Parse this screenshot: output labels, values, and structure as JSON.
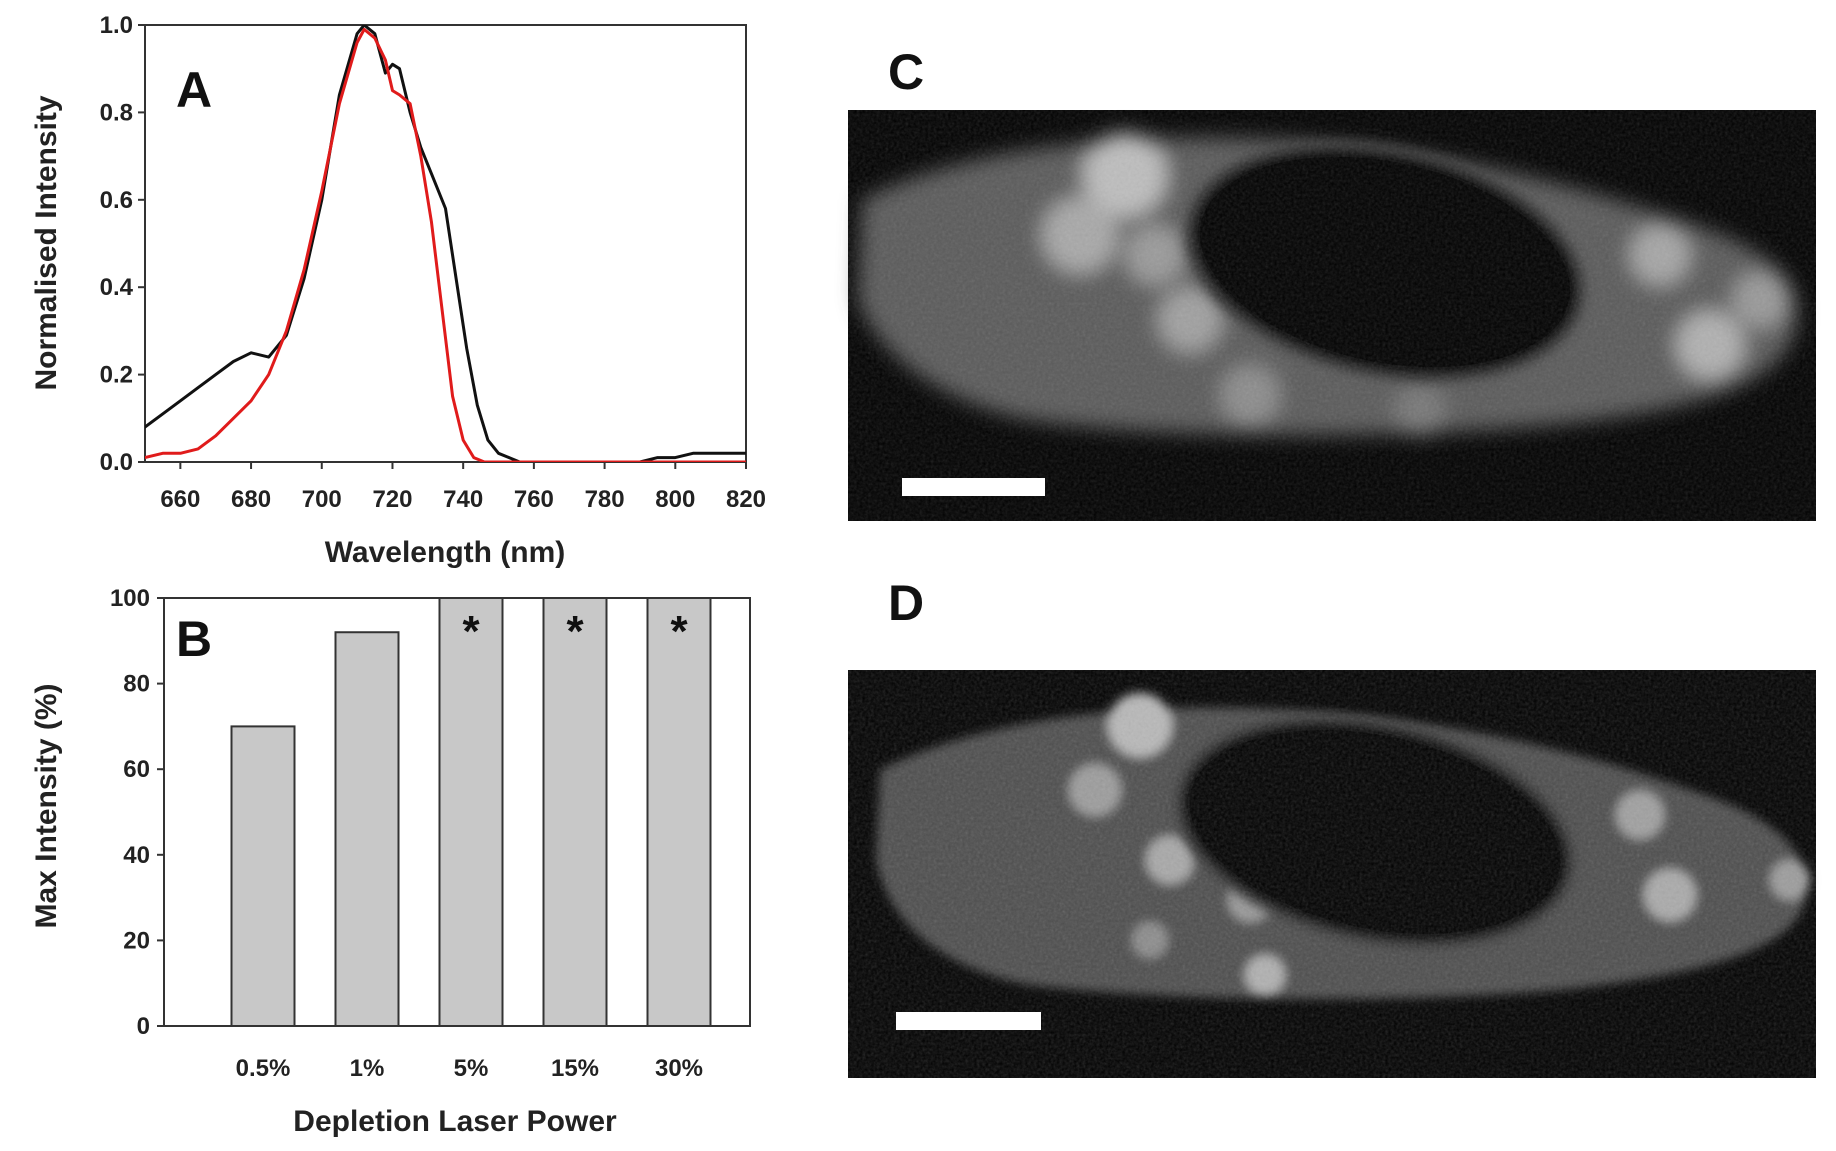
{
  "chart_data": [
    {
      "panel": "A",
      "type": "line",
      "xlabel": "Wavelength (nm)",
      "ylabel": "Normalised Intensity",
      "xlim": [
        650,
        820
      ],
      "ylim": [
        0.0,
        1.0
      ],
      "xticks": [
        "660",
        "680",
        "700",
        "720",
        "740",
        "760",
        "780",
        "800",
        "820"
      ],
      "yticks": [
        "0.0",
        "0.2",
        "0.4",
        "0.6",
        "0.8",
        "1.0"
      ],
      "grid": false,
      "series": [
        {
          "color": "#111111",
          "x": [
            650,
            655,
            660,
            665,
            670,
            675,
            680,
            685,
            690,
            695,
            700,
            705,
            710,
            712,
            715,
            718,
            720,
            722,
            725,
            728,
            731,
            735,
            738,
            741,
            744,
            747,
            750,
            753,
            756,
            760,
            770,
            780,
            790,
            795,
            800,
            805,
            810,
            815,
            820
          ],
          "y": [
            0.08,
            0.11,
            0.14,
            0.17,
            0.2,
            0.23,
            0.25,
            0.24,
            0.29,
            0.42,
            0.6,
            0.84,
            0.98,
            1.0,
            0.98,
            0.89,
            0.91,
            0.9,
            0.8,
            0.72,
            0.66,
            0.58,
            0.42,
            0.26,
            0.13,
            0.05,
            0.02,
            0.01,
            0.0,
            0.0,
            0.0,
            0.0,
            0.0,
            0.01,
            0.01,
            0.02,
            0.02,
            0.02,
            0.02
          ]
        },
        {
          "color": "#e01b1b",
          "x": [
            650,
            655,
            660,
            665,
            670,
            675,
            680,
            685,
            690,
            695,
            700,
            705,
            710,
            712,
            715,
            718,
            720,
            722,
            725,
            728,
            731,
            734,
            737,
            740,
            743,
            746,
            750,
            760,
            780,
            800,
            820
          ],
          "y": [
            0.01,
            0.02,
            0.02,
            0.03,
            0.06,
            0.1,
            0.14,
            0.2,
            0.3,
            0.44,
            0.62,
            0.82,
            0.96,
            0.99,
            0.97,
            0.92,
            0.85,
            0.84,
            0.82,
            0.7,
            0.55,
            0.35,
            0.15,
            0.05,
            0.01,
            0.0,
            0.0,
            0.0,
            0.0,
            0.0,
            0.0
          ]
        }
      ]
    },
    {
      "panel": "B",
      "type": "bar",
      "xlabel": "Depletion Laser Power",
      "ylabel": "Max Intensity (%)",
      "categories": [
        "0.5%",
        "1%",
        "5%",
        "15%",
        "30%"
      ],
      "values": [
        70,
        92,
        100,
        100,
        100
      ],
      "markers": [
        "",
        "",
        "*",
        "*",
        "*"
      ],
      "ylim": [
        0,
        100
      ],
      "yticks": [
        "0",
        "20",
        "40",
        "60",
        "80",
        "100"
      ],
      "bar_color": "#c8c8c8",
      "grid": false
    }
  ],
  "panels": {
    "a_letter": "A",
    "b_letter": "B",
    "c_letter": "C",
    "d_letter": "D"
  },
  "images": {
    "c": {
      "content": "confocal fluorescence image of a cell (grayscale), scale bar",
      "bg_color": "#000000"
    },
    "d": {
      "content": "depletion-mode fluorescence image of the same cell (grayscale), scale bar",
      "bg_color": "#000000"
    }
  }
}
